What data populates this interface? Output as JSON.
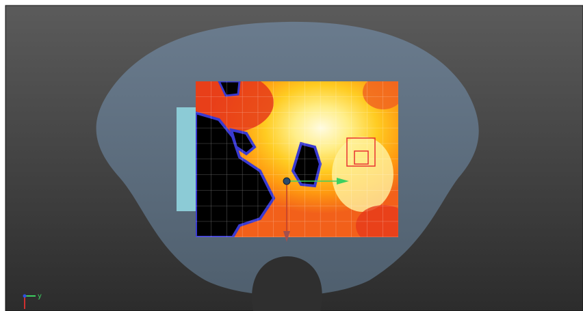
{
  "viewport": {
    "axis_gizmo": {
      "y_label": "y"
    }
  }
}
